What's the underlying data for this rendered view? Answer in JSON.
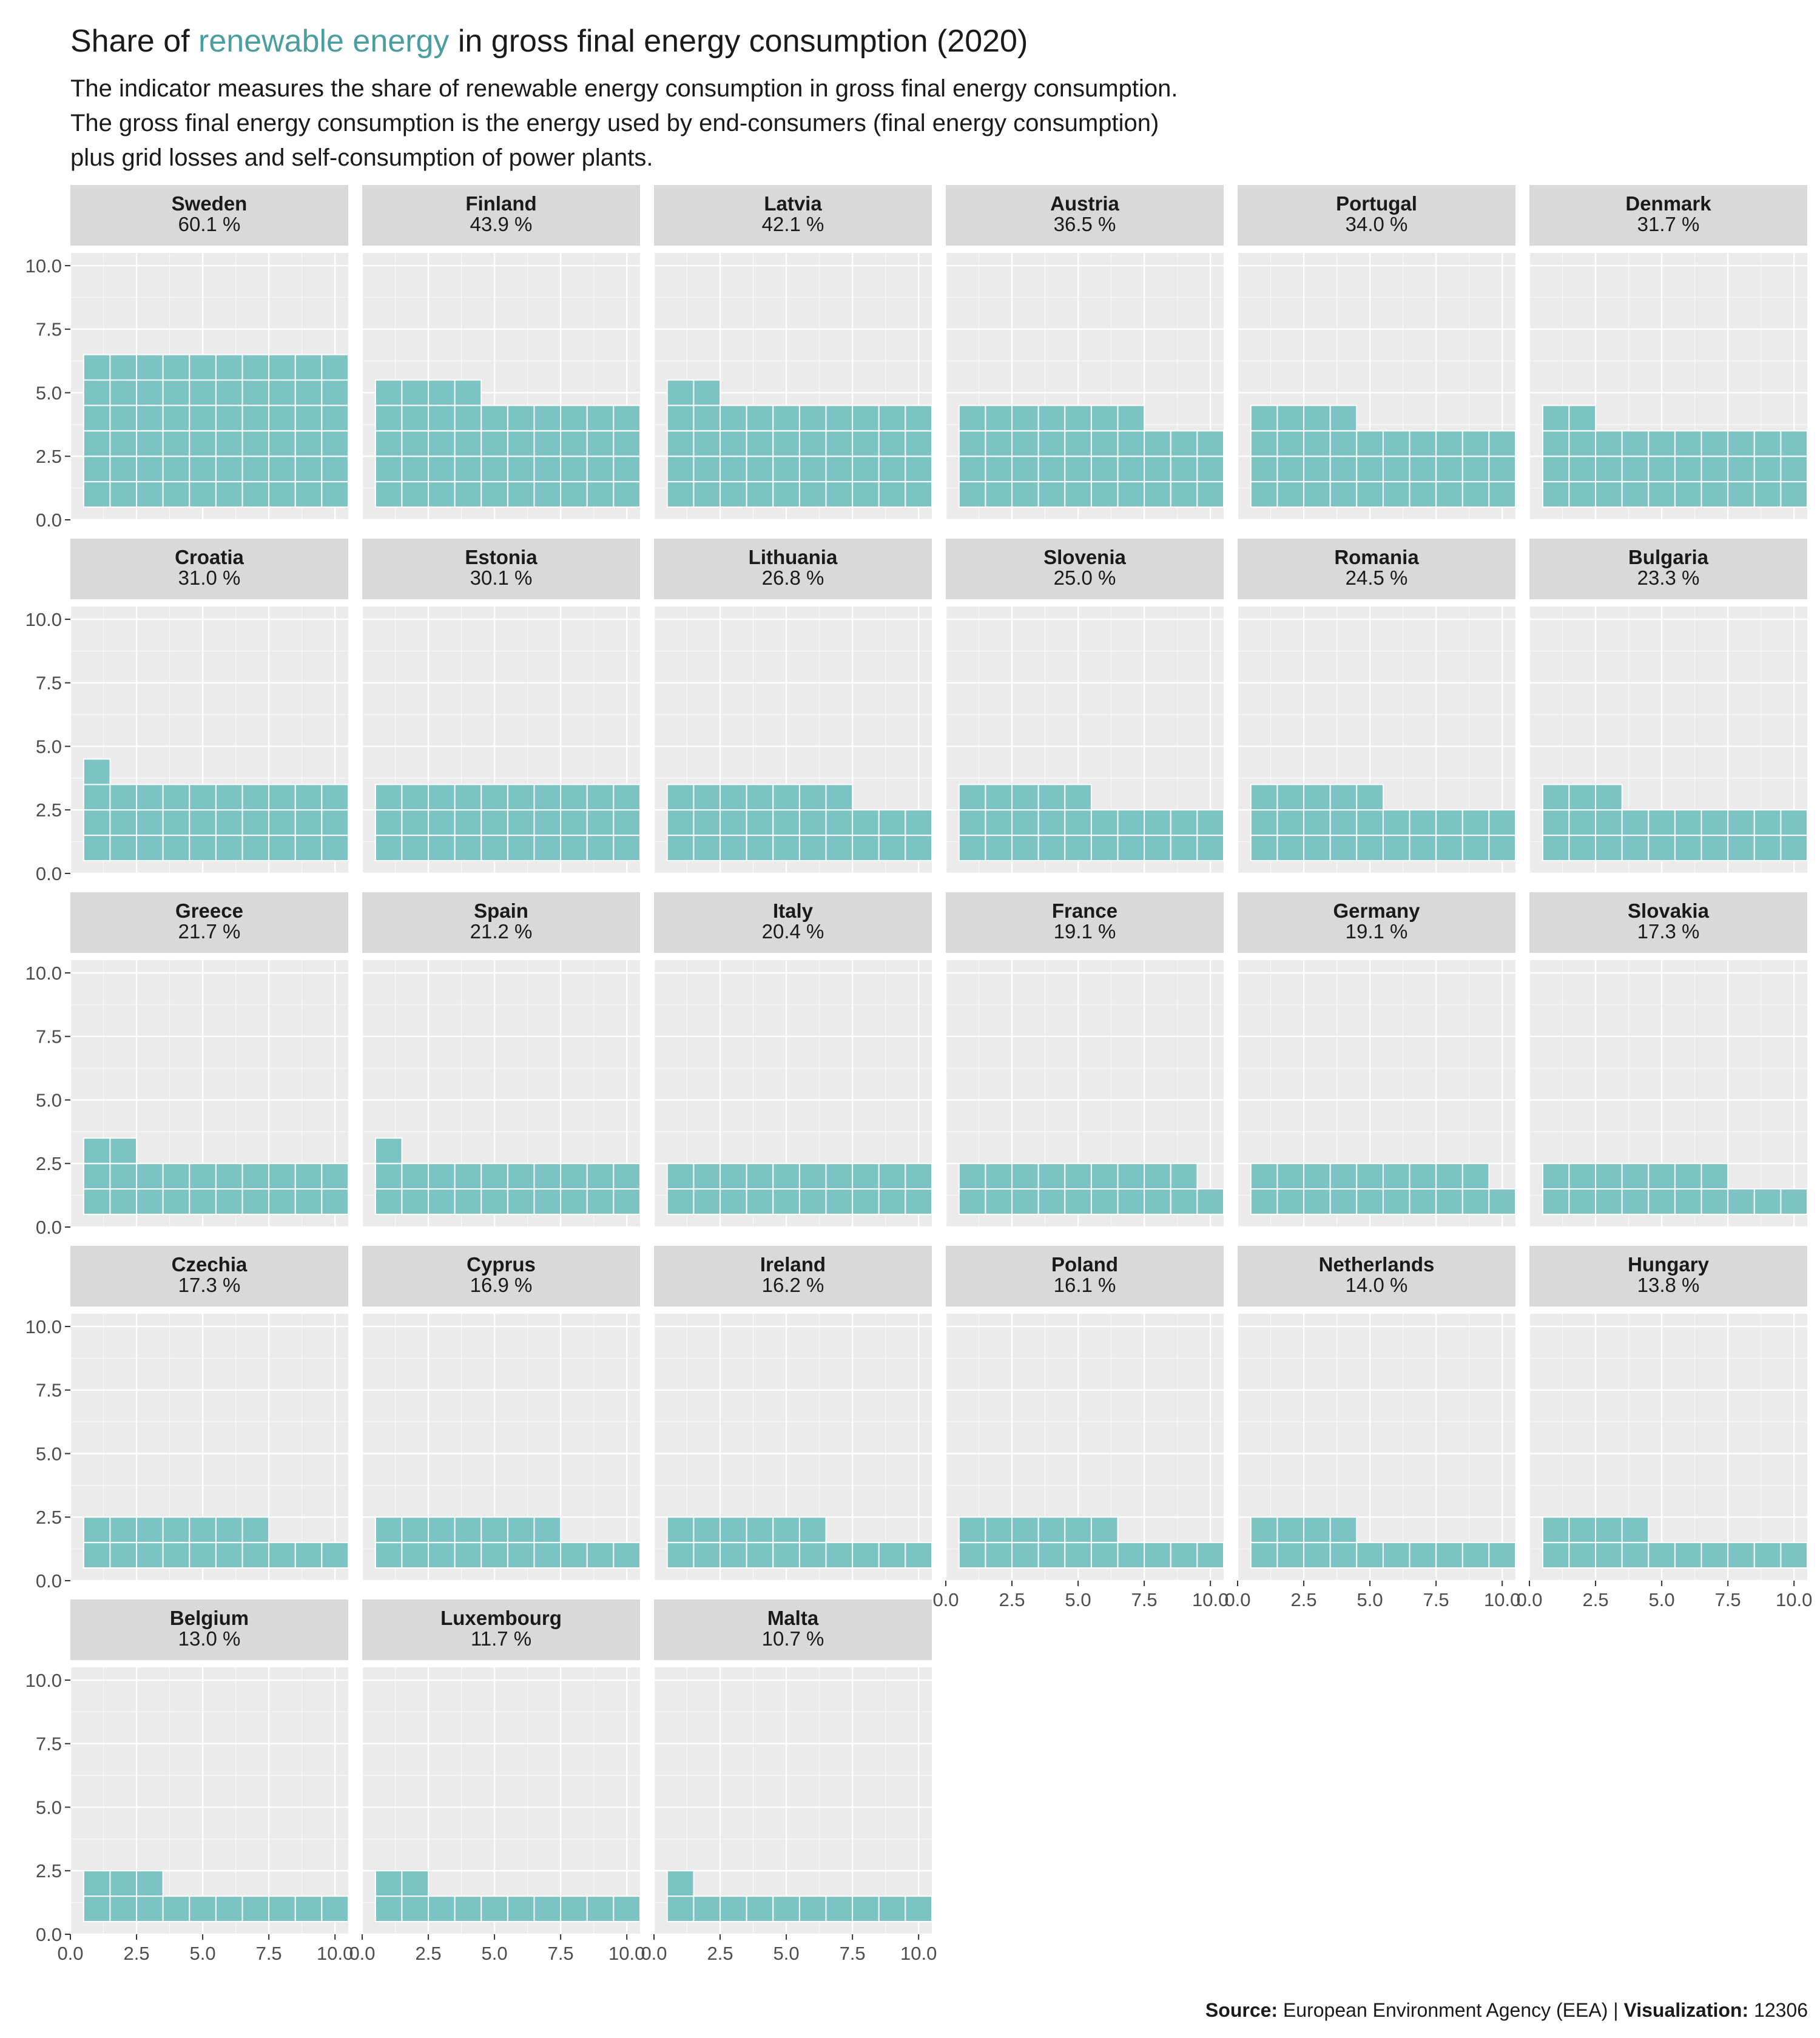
{
  "title": {
    "before": "Share of ",
    "highlight": "renewable energy",
    "after": " in gross final energy consumption (2020)"
  },
  "subtitle": [
    "The indicator measures the share of renewable energy consumption in gross final energy consumption.",
    "The gross final energy consumption is the energy used by end-consumers (final energy consumption)",
    "plus grid losses and self-consumption of power plants."
  ],
  "caption": {
    "source_label": "Source:",
    "source": " European Environment Agency (EEA) | ",
    "viz_label": "Visualization:",
    "viz": " 12306"
  },
  "colors": {
    "accent": "#4a9e9e",
    "tile": "#7cc3c3",
    "panel": "#ebebeb",
    "strip": "#d9d9d9",
    "grid": "#ffffff"
  },
  "chart_data": {
    "type": "waffle",
    "cells_per_row": 10,
    "xlim": [
      0,
      10.5
    ],
    "ylim": [
      0,
      10.5
    ],
    "x_ticks": [
      "0.0",
      "2.5",
      "5.0",
      "7.5",
      "10.0"
    ],
    "y_ticks": [
      "0.0",
      "2.5",
      "5.0",
      "7.5",
      "10.0"
    ],
    "value_suffix": " %",
    "countries": [
      {
        "name": "Sweden",
        "value": 60.1,
        "label": "60.1 %"
      },
      {
        "name": "Finland",
        "value": 43.9,
        "label": "43.9 %"
      },
      {
        "name": "Latvia",
        "value": 42.1,
        "label": "42.1 %"
      },
      {
        "name": "Austria",
        "value": 36.5,
        "label": "36.5 %"
      },
      {
        "name": "Portugal",
        "value": 34.0,
        "label": "34.0 %"
      },
      {
        "name": "Denmark",
        "value": 31.7,
        "label": "31.7 %"
      },
      {
        "name": "Croatia",
        "value": 31.0,
        "label": "31.0 %"
      },
      {
        "name": "Estonia",
        "value": 30.1,
        "label": "30.1 %"
      },
      {
        "name": "Lithuania",
        "value": 26.8,
        "label": "26.8 %"
      },
      {
        "name": "Slovenia",
        "value": 25.0,
        "label": "25.0 %"
      },
      {
        "name": "Romania",
        "value": 24.5,
        "label": "24.5 %"
      },
      {
        "name": "Bulgaria",
        "value": 23.3,
        "label": "23.3 %"
      },
      {
        "name": "Greece",
        "value": 21.7,
        "label": "21.7 %"
      },
      {
        "name": "Spain",
        "value": 21.2,
        "label": "21.2 %"
      },
      {
        "name": "Italy",
        "value": 20.4,
        "label": "20.4 %"
      },
      {
        "name": "France",
        "value": 19.1,
        "label": "19.1 %"
      },
      {
        "name": "Germany",
        "value": 19.1,
        "label": "19.1 %"
      },
      {
        "name": "Slovakia",
        "value": 17.3,
        "label": "17.3 %"
      },
      {
        "name": "Czechia",
        "value": 17.3,
        "label": "17.3 %"
      },
      {
        "name": "Cyprus",
        "value": 16.9,
        "label": "16.9 %"
      },
      {
        "name": "Ireland",
        "value": 16.2,
        "label": "16.2 %"
      },
      {
        "name": "Poland",
        "value": 16.1,
        "label": "16.1 %"
      },
      {
        "name": "Netherlands",
        "value": 14.0,
        "label": "14.0 %"
      },
      {
        "name": "Hungary",
        "value": 13.8,
        "label": "13.8 %"
      },
      {
        "name": "Belgium",
        "value": 13.0,
        "label": "13.0 %"
      },
      {
        "name": "Luxembourg",
        "value": 11.7,
        "label": "11.7 %"
      },
      {
        "name": "Malta",
        "value": 10.7,
        "label": "10.7 %"
      }
    ]
  }
}
